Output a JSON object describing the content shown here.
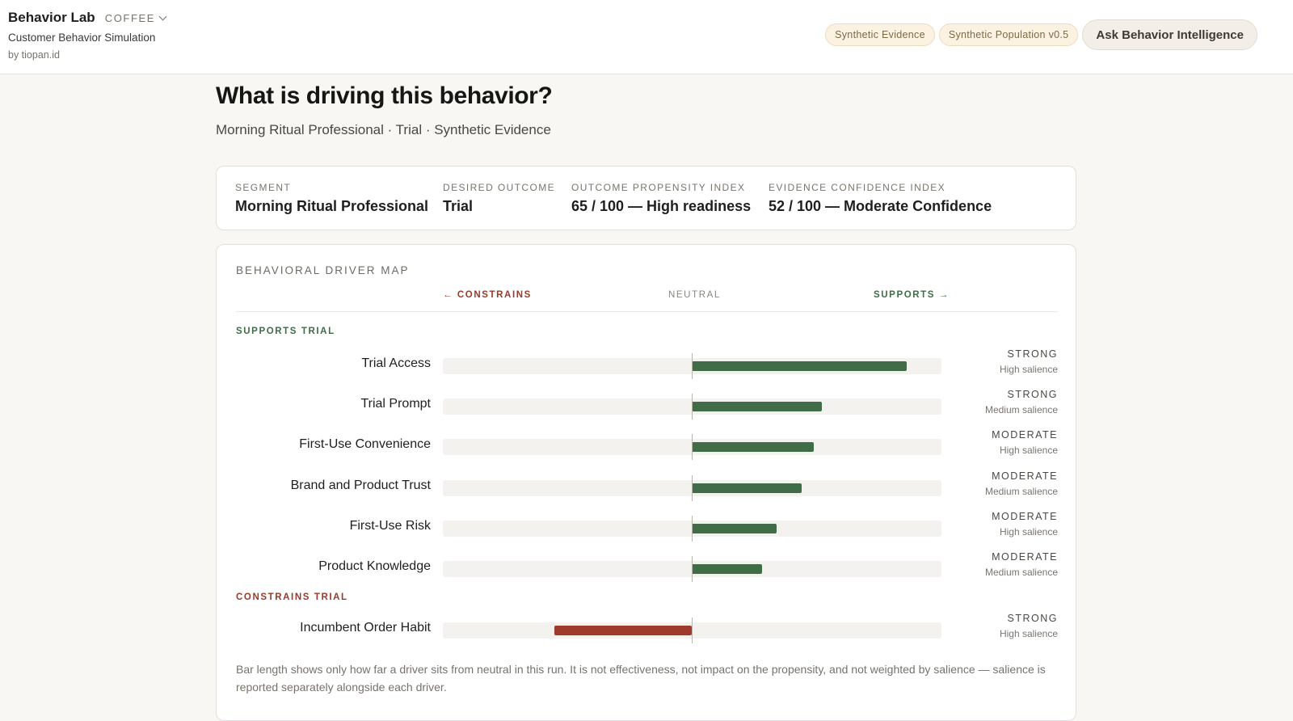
{
  "header": {
    "app_name": "Behavior Lab",
    "vertical": "COFFEE",
    "subtitle": "Customer Behavior Simulation",
    "byline": "by tiopan.id",
    "pills": [
      "Synthetic Evidence",
      "Synthetic Population v0.5"
    ],
    "ask_button": "Ask Behavior Intelligence"
  },
  "page": {
    "title": "What is driving this behavior?",
    "subtitle": "Morning Ritual Professional · Trial · Synthetic Evidence"
  },
  "summary": [
    {
      "label": "SEGMENT",
      "value": "Morning Ritual Professional"
    },
    {
      "label": "DESIRED OUTCOME",
      "value": "Trial"
    },
    {
      "label": "OUTCOME PROPENSITY INDEX",
      "value": "65 / 100 — High readiness"
    },
    {
      "label": "EVIDENCE CONFIDENCE INDEX",
      "value": "52 / 100 — Moderate Confidence"
    }
  ],
  "driver_map": {
    "title": "BEHAVIORAL DRIVER MAP",
    "axis": {
      "left": "← CONSTRAINS",
      "center": "NEUTRAL",
      "right": "SUPPORTS →"
    },
    "supports_label": "SUPPORTS TRIAL",
    "constrains_label": "CONSTRAINS TRIAL",
    "supports": [
      {
        "name": "Trial Access",
        "value": 0.86,
        "strength": "STRONG",
        "salience": "High salience"
      },
      {
        "name": "Trial Prompt",
        "value": 0.52,
        "strength": "STRONG",
        "salience": "Medium salience"
      },
      {
        "name": "First-Use Convenience",
        "value": 0.49,
        "strength": "MODERATE",
        "salience": "High salience"
      },
      {
        "name": "Brand and Product Trust",
        "value": 0.44,
        "strength": "MODERATE",
        "salience": "Medium salience"
      },
      {
        "name": "First-Use Risk",
        "value": 0.34,
        "strength": "MODERATE",
        "salience": "High salience"
      },
      {
        "name": "Product Knowledge",
        "value": 0.28,
        "strength": "MODERATE",
        "salience": "Medium salience"
      }
    ],
    "constrains": [
      {
        "name": "Incumbent Order Habit",
        "value": -0.55,
        "strength": "STRONG",
        "salience": "High salience"
      }
    ],
    "footnote": "Bar length shows only how far a driver sits from neutral in this run. It is not effectiveness, not impact on the propensity, and not weighted by salience — salience is reported separately alongside each driver."
  },
  "colors": {
    "supports": "#416c48",
    "constrains": "#9e3b2d",
    "pill_bg": "#fbf2e2"
  }
}
